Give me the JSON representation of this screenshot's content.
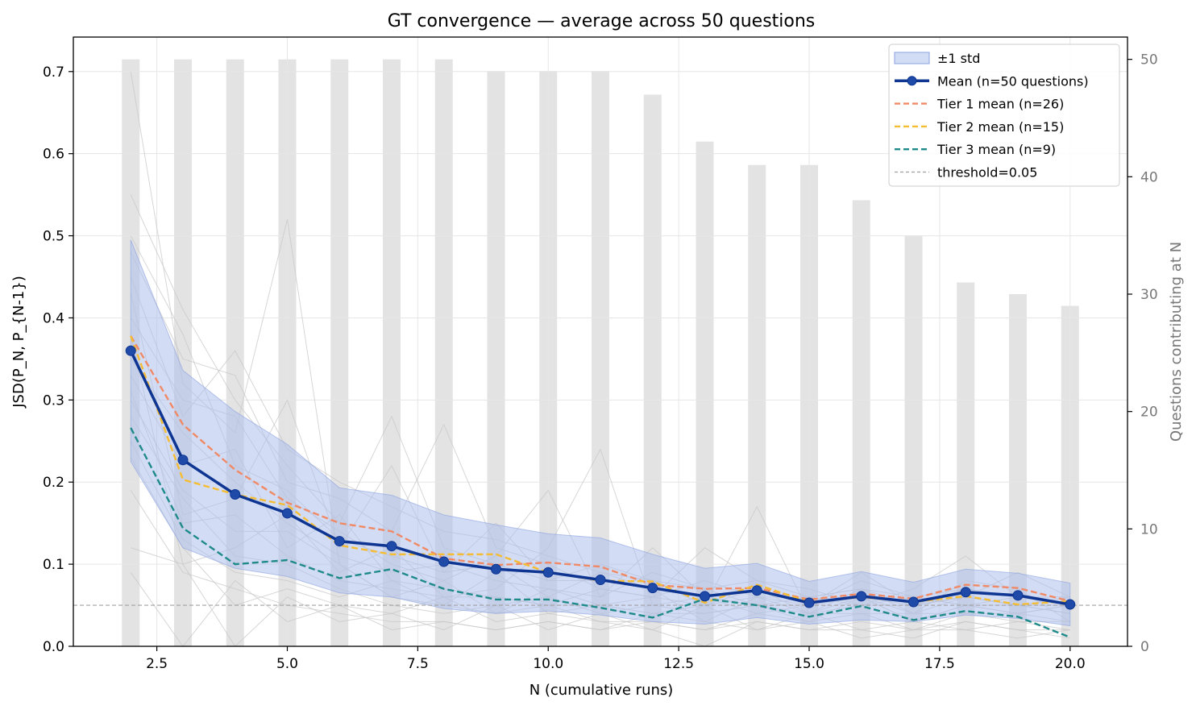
{
  "chart_data": {
    "type": "line",
    "title": "GT convergence — average across 50 questions",
    "xlabel": "N (cumulative runs)",
    "ylabel": "JSD(P_N, P_{N-1})",
    "y2label": "Questions contributing at N",
    "xlim": [
      0.9,
      21.1
    ],
    "ylim": [
      0,
      0.742
    ],
    "y2lim": [
      0,
      51.9
    ],
    "xticks": [
      "2.5",
      "5.0",
      "7.5",
      "10.0",
      "12.5",
      "15.0",
      "17.5",
      "20.0"
    ],
    "yticks": [
      "0.0",
      "0.1",
      "0.2",
      "0.3",
      "0.4",
      "0.5",
      "0.6",
      "0.7"
    ],
    "y2ticks": [
      "0",
      "10",
      "20",
      "30",
      "40",
      "50"
    ],
    "grid": true,
    "legend_position": "top-right",
    "x": [
      2,
      3,
      4,
      5,
      6,
      7,
      8,
      9,
      10,
      11,
      12,
      13,
      14,
      15,
      16,
      17,
      18,
      19,
      20
    ],
    "counts": [
      50,
      50,
      50,
      50,
      50,
      50,
      50,
      49,
      49,
      49,
      47,
      43,
      41,
      41,
      38,
      35,
      31,
      30,
      29
    ],
    "series": [
      {
        "name": "Mean (n=50 questions)",
        "color": "#0d3591",
        "style": "solid-markers",
        "values": [
          0.36,
          0.227,
          0.185,
          0.162,
          0.128,
          0.122,
          0.103,
          0.094,
          0.09,
          0.081,
          0.071,
          0.061,
          0.068,
          0.053,
          0.061,
          0.054,
          0.066,
          0.062,
          0.051
        ]
      },
      {
        "name": "Tier 1 mean (n=26)",
        "color": "#f08a66",
        "style": "dashed",
        "values": [
          0.378,
          0.27,
          0.215,
          0.175,
          0.15,
          0.14,
          0.107,
          0.099,
          0.102,
          0.097,
          0.075,
          0.07,
          0.071,
          0.057,
          0.064,
          0.058,
          0.075,
          0.071,
          0.055
        ]
      },
      {
        "name": "Tier 2 mean (n=15)",
        "color": "#f5bd34",
        "style": "dashed",
        "values": [
          0.378,
          0.203,
          0.185,
          0.172,
          0.123,
          0.112,
          0.112,
          0.112,
          0.09,
          0.08,
          0.079,
          0.053,
          0.075,
          0.054,
          0.06,
          0.054,
          0.061,
          0.051,
          0.055
        ]
      },
      {
        "name": "Tier 3 mean (n=9)",
        "color": "#1f8a8a",
        "style": "dashed",
        "values": [
          0.266,
          0.144,
          0.1,
          0.105,
          0.083,
          0.094,
          0.07,
          0.057,
          0.057,
          0.047,
          0.035,
          0.058,
          0.05,
          0.036,
          0.049,
          0.032,
          0.043,
          0.036,
          0.011
        ]
      },
      {
        "name": "±1 std",
        "color": "#aec0ec",
        "style": "band",
        "lower": [
          0.225,
          0.12,
          0.095,
          0.085,
          0.065,
          0.06,
          0.046,
          0.04,
          0.043,
          0.038,
          0.03,
          0.027,
          0.035,
          0.027,
          0.032,
          0.03,
          0.038,
          0.034,
          0.025
        ],
        "upper": [
          0.495,
          0.336,
          0.286,
          0.246,
          0.193,
          0.184,
          0.16,
          0.148,
          0.137,
          0.132,
          0.112,
          0.095,
          0.101,
          0.079,
          0.091,
          0.078,
          0.094,
          0.089,
          0.077
        ]
      },
      {
        "name": "threshold=0.05",
        "color": "#a0a0a0",
        "style": "dashed-thin",
        "value": 0.05
      }
    ],
    "individual_lines": [
      [
        0.7,
        0.32,
        0.26,
        0.52,
        0.1,
        0.06,
        0.08,
        0.04,
        0.07,
        0.05,
        0.06,
        0.05,
        0.07,
        0.04,
        0.05,
        0.05,
        0.06,
        0.05,
        0.04
      ],
      [
        0.55,
        0.41,
        0.3,
        0.22,
        0.15,
        0.28,
        0.12,
        0.1,
        0.06,
        0.09,
        0.07,
        0.03,
        0.06,
        0.05,
        0.08,
        0.06,
        0.05,
        0.04,
        0.05
      ],
      [
        0.48,
        0.35,
        0.33,
        0.2,
        0.18,
        0.14,
        0.27,
        0.12,
        0.1,
        0.07,
        0.06,
        0.08,
        0.06,
        0.06,
        0.07,
        0.05,
        0.07,
        0.06,
        0.05
      ],
      [
        0.43,
        0.16,
        0.18,
        0.3,
        0.12,
        0.22,
        0.09,
        0.15,
        0.08,
        0.1,
        0.08,
        0.05,
        0.17,
        0.04,
        0.06,
        0.04,
        0.06,
        0.05,
        0.06
      ],
      [
        0.4,
        0.3,
        0.28,
        0.18,
        0.14,
        0.1,
        0.08,
        0.11,
        0.19,
        0.06,
        0.09,
        0.07,
        0.05,
        0.06,
        0.05,
        0.07,
        0.11,
        0.06,
        0.05
      ],
      [
        0.38,
        0.1,
        0.12,
        0.16,
        0.09,
        0.12,
        0.06,
        0.07,
        0.12,
        0.24,
        0.05,
        0.06,
        0.04,
        0.05,
        0.06,
        0.03,
        0.05,
        0.05,
        0.04
      ],
      [
        0.35,
        0.26,
        0.2,
        0.15,
        0.11,
        0.09,
        0.1,
        0.08,
        0.07,
        0.06,
        0.12,
        0.06,
        0.07,
        0.05,
        0.09,
        0.05,
        0.06,
        0.09,
        0.06
      ],
      [
        0.33,
        0.22,
        0.24,
        0.12,
        0.16,
        0.08,
        0.07,
        0.06,
        0.05,
        0.07,
        0.06,
        0.12,
        0.08,
        0.07,
        0.05,
        0.06,
        0.05,
        0.06,
        0.05
      ],
      [
        0.3,
        0.19,
        0.14,
        0.14,
        0.1,
        0.06,
        0.05,
        0.09,
        0.04,
        0.05,
        0.04,
        0.05,
        0.06,
        0.04,
        0.07,
        0.04,
        0.08,
        0.07,
        0.03
      ],
      [
        0.28,
        0.18,
        0.11,
        0.1,
        0.07,
        0.05,
        0.04,
        0.05,
        0.06,
        0.04,
        0.05,
        0.04,
        0.05,
        0.03,
        0.06,
        0.03,
        0.05,
        0.04,
        0.05
      ],
      [
        0.25,
        0.13,
        0.09,
        0.08,
        0.06,
        0.08,
        0.05,
        0.04,
        0.05,
        0.03,
        0.03,
        0.02,
        0.04,
        0.03,
        0.04,
        0.02,
        0.04,
        0.03,
        0.03
      ],
      [
        0.23,
        0.12,
        0.05,
        0.07,
        0.05,
        0.04,
        0.06,
        0.03,
        0.04,
        0.03,
        0.02,
        0.0,
        0.03,
        0.02,
        0.03,
        0.02,
        0.02,
        0.03,
        0.02
      ],
      [
        0.19,
        0.09,
        0.07,
        0.05,
        0.04,
        0.03,
        0.03,
        0.02,
        0.03,
        0.02,
        0.03,
        0.02,
        0.03,
        0.02,
        0.02,
        0.01,
        0.03,
        0.02,
        0.01
      ],
      [
        0.12,
        0.1,
        0.0,
        0.06,
        0.03,
        0.04,
        0.02,
        0.05,
        0.02,
        0.04,
        0.02,
        0.05,
        0.02,
        0.04,
        0.02,
        0.03,
        0.02,
        0.01,
        0.02
      ],
      [
        0.09,
        0.0,
        0.08,
        0.03,
        0.05,
        0.02,
        0.03,
        0.02,
        0.03,
        0.02,
        0.04,
        0.03,
        0.02,
        0.03,
        0.01,
        0.02,
        0.03,
        0.02,
        0.02
      ],
      [
        0.45,
        0.28,
        0.36,
        0.24,
        0.2,
        0.17,
        0.14,
        0.13,
        0.11,
        0.09,
        0.08,
        0.07,
        0.08,
        0.06,
        0.07,
        0.06,
        0.07,
        0.06,
        0.06
      ],
      [
        0.5,
        0.38,
        0.22,
        0.19,
        0.13,
        0.11,
        0.09,
        0.1,
        0.08,
        0.08,
        0.07,
        0.06,
        0.05,
        0.05,
        0.06,
        0.05,
        0.06,
        0.05,
        0.05
      ],
      [
        0.31,
        0.15,
        0.16,
        0.11,
        0.08,
        0.07,
        0.06,
        0.06,
        0.05,
        0.05,
        0.04,
        0.04,
        0.05,
        0.04,
        0.04,
        0.04,
        0.04,
        0.04,
        0.03
      ]
    ]
  },
  "legend": [
    {
      "label": "±1 std",
      "kind": "band",
      "color": "#aec0ec"
    },
    {
      "label": "Mean (n=50 questions)",
      "kind": "line-marker",
      "color": "#0d3591"
    },
    {
      "label": "Tier 1 mean (n=26)",
      "kind": "dashed",
      "color": "#f08a66"
    },
    {
      "label": "Tier 2 mean (n=15)",
      "kind": "dashed",
      "color": "#f5bd34"
    },
    {
      "label": "Tier 3 mean (n=9)",
      "kind": "dashed",
      "color": "#1f8a8a"
    },
    {
      "label": "threshold=0.05",
      "kind": "dashed-thin",
      "color": "#a0a0a0"
    }
  ]
}
